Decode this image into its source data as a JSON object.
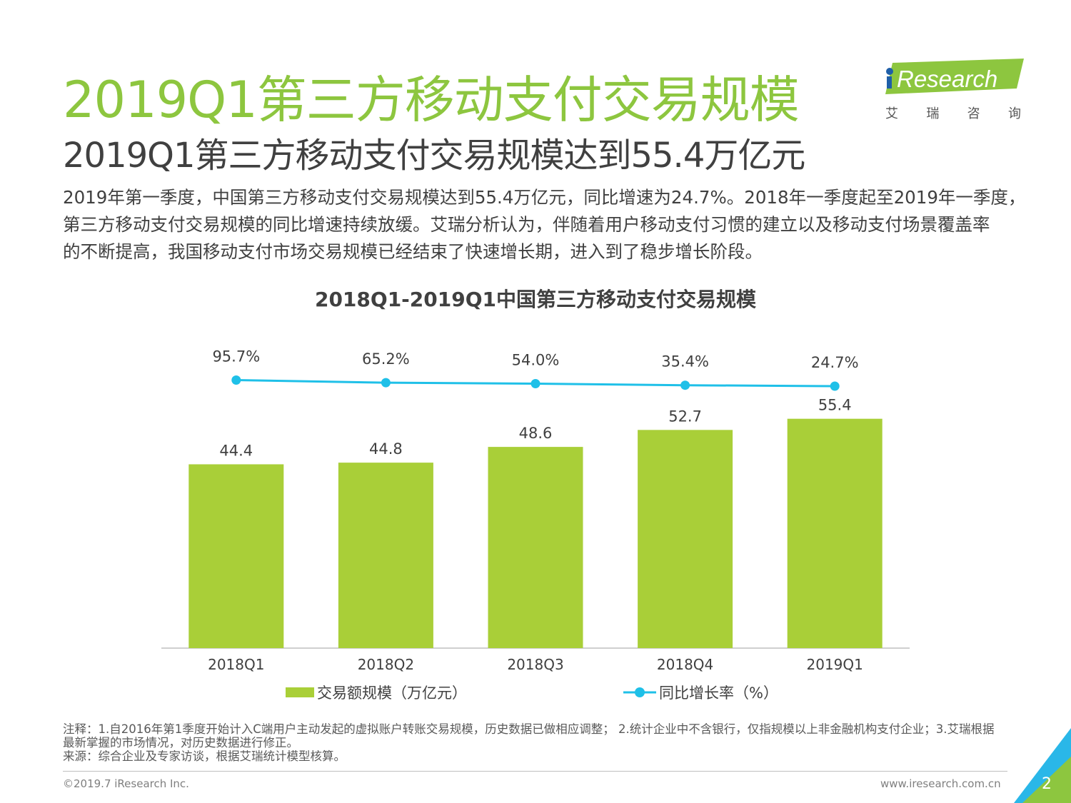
{
  "header": {
    "title": "2019Q1第三方移动支付交易规模",
    "subtitle": "2019Q1第三方移动支付交易规模达到55.4万亿元",
    "logo_text": "iResearch",
    "logo_cn": [
      "艾",
      "瑞",
      "咨",
      "询"
    ]
  },
  "body_lines": [
    "2019年第一季度，中国第三方移动支付交易规模达到55.4万亿元，同比增速为24.7%。2018年一季度起至2019年一季度，",
    "第三方移动支付交易规模的同比增速持续放缓。艾瑞分析认为，伴随着用户移动支付习惯的建立以及移动支付场景覆盖率",
    "的不断提高，我国移动支付市场交易规模已经结束了快速增长期，进入到了稳步增长阶段。"
  ],
  "chart_data": {
    "type": "bar",
    "title": "2018Q1-2019Q1中国第三方移动支付交易规模",
    "categories": [
      "2018Q1",
      "2018Q2",
      "2018Q3",
      "2018Q4",
      "2019Q1"
    ],
    "series": [
      {
        "name": "交易额规模（万亿元）",
        "type": "bar",
        "values": [
          44.4,
          44.8,
          48.6,
          52.7,
          55.4
        ],
        "labels": [
          "44.4",
          "44.8",
          "48.6",
          "52.7",
          "55.4"
        ],
        "color": "#a9cf38"
      },
      {
        "name": "同比增长率（%）",
        "type": "line",
        "values": [
          95.7,
          65.2,
          54.0,
          35.4,
          24.7
        ],
        "labels": [
          "95.7%",
          "65.2%",
          "54.0%",
          "35.4%",
          "24.7%"
        ],
        "color": "#1fc0e8"
      }
    ],
    "legend_position": "bottom",
    "grid": false
  },
  "notes": [
    "注释：1.自2016年第1季度开始计入C端用户主动发起的虚拟账户转账交易规模，历史数据已做相应调整； 2.统计企业中不含银行，仅指规模以上非金融机构支付企业；3.艾瑞根据",
    "最新掌握的市场情况，对历史数据进行修正。",
    "来源：综合企业及专家访谈，根据艾瑞统计模型核算。"
  ],
  "footer": {
    "copyright": "©2019.7 iResearch Inc.",
    "website": "www.iresearch.com.cn",
    "page": "2"
  }
}
